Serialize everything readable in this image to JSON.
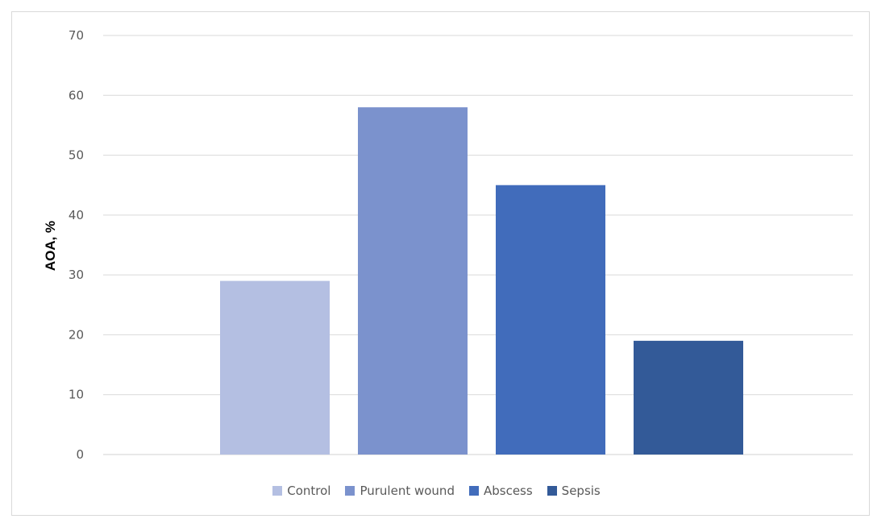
{
  "chart_data": {
    "type": "bar",
    "title": "",
    "xlabel": "",
    "ylabel": "AOA, %",
    "ylim": [
      0,
      70
    ],
    "yticks": [
      0,
      10,
      20,
      30,
      40,
      50,
      60,
      70
    ],
    "grid": true,
    "legend_position": "bottom",
    "categories": [
      "Control",
      "Purulent wound",
      "Abscess",
      "Sepsis"
    ],
    "values": [
      29,
      58,
      45,
      19
    ],
    "colors": [
      "#b4bfe2",
      "#7b92cd",
      "#416cbb",
      "#335a98"
    ]
  }
}
